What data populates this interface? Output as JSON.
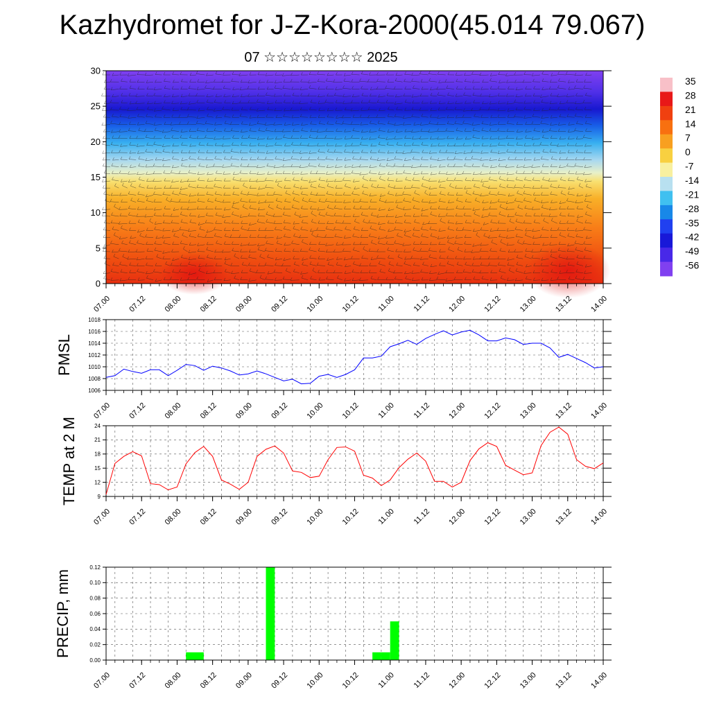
{
  "title": "Kazhydromet for J-Z-Kora-2000(45.014 79.067)",
  "subtitle": "07 ☆☆☆☆☆☆☆☆ 2025",
  "time_ticks": [
    "07.00",
    "07.12",
    "08.00",
    "08.12",
    "09.00",
    "09.12",
    "10.00",
    "10.12",
    "11.00",
    "11.12",
    "12.00",
    "12.12",
    "13.00",
    "13.12",
    "14.00"
  ],
  "colorbar": {
    "labels": [
      "35",
      "28",
      "21",
      "14",
      "7",
      "0",
      "-7",
      "-14",
      "-21",
      "-28",
      "-35",
      "-42",
      "-49",
      "-56"
    ],
    "stops": [
      "#f8c0c8",
      "#e81818",
      "#f04010",
      "#f87010",
      "#f8a020",
      "#f8d040",
      "#f8f0a0",
      "#b8e0f0",
      "#40c0f0",
      "#1888e8",
      "#2040f0",
      "#1818d8",
      "#4828e8",
      "#8040f0"
    ]
  },
  "chart_data": [
    {
      "type": "heatmap",
      "title": "",
      "xlabel": "",
      "ylabel": "",
      "ylim": [
        0,
        30
      ],
      "y_ticks": [
        "0",
        "5",
        "10",
        "15",
        "20",
        "25",
        "30"
      ],
      "x_ticks": [
        "07.00",
        "07.12",
        "08.00",
        "08.12",
        "09.00",
        "09.12",
        "10.00",
        "10.12",
        "11.00",
        "11.12",
        "12.00",
        "12.12",
        "13.00",
        "13.12",
        "14.00"
      ],
      "variable": "air temperature with wind barbs",
      "colorbar_range": [
        -56,
        35
      ]
    },
    {
      "type": "line",
      "ylabel": "PMSL",
      "ylim": [
        1006,
        1018
      ],
      "y_ticks": [
        "1006",
        "1008",
        "1010",
        "1012",
        "1014",
        "1016",
        "1018"
      ],
      "x": [
        "07.00",
        "07.03",
        "07.06",
        "07.09",
        "07.12",
        "07.15",
        "07.18",
        "07.21",
        "08.00",
        "08.03",
        "08.06",
        "08.09",
        "08.12",
        "08.15",
        "08.18",
        "08.21",
        "09.00",
        "09.03",
        "09.06",
        "09.09",
        "09.12",
        "09.15",
        "09.18",
        "09.21",
        "10.00",
        "10.03",
        "10.06",
        "10.09",
        "10.12",
        "10.15",
        "10.18",
        "10.21",
        "11.00",
        "11.03",
        "11.06",
        "11.09",
        "11.12",
        "11.15",
        "11.18",
        "11.21",
        "12.00",
        "12.03",
        "12.06",
        "12.09",
        "12.12",
        "12.15",
        "12.18",
        "12.21",
        "13.00",
        "13.03",
        "13.06",
        "13.09",
        "13.12",
        "13.15",
        "13.18",
        "13.21",
        "14.00"
      ],
      "series": [
        {
          "color": "#0000ff",
          "values": [
            1008.2,
            1008.5,
            1009.6,
            1009.2,
            1008.9,
            1009.5,
            1009.5,
            1008.5,
            1009.4,
            1010.4,
            1010.2,
            1009.4,
            1010.1,
            1009.8,
            1009.3,
            1008.6,
            1008.8,
            1009.3,
            1008.8,
            1008.2,
            1007.6,
            1007.9,
            1007.1,
            1007.2,
            1008.4,
            1008.7,
            1008.2,
            1008.7,
            1009.5,
            1011.5,
            1011.5,
            1011.8,
            1013.4,
            1013.9,
            1014.5,
            1013.8,
            1014.8,
            1015.5,
            1016.1,
            1015.4,
            1015.9,
            1016.2,
            1015.4,
            1014.4,
            1014.4,
            1014.9,
            1014.6,
            1013.8,
            1014.0,
            1014.0,
            1013.2,
            1011.6,
            1012.1,
            1011.4,
            1010.7,
            1009.8,
            1010.0
          ]
        }
      ]
    },
    {
      "type": "line",
      "ylabel": "TEMP at 2 M",
      "ylim": [
        9,
        24
      ],
      "y_ticks": [
        "9",
        "12",
        "15",
        "18",
        "21",
        "24"
      ],
      "x": [
        "07.00",
        "07.03",
        "07.06",
        "07.09",
        "07.12",
        "07.15",
        "07.18",
        "07.21",
        "08.00",
        "08.03",
        "08.06",
        "08.09",
        "08.12",
        "08.15",
        "08.18",
        "08.21",
        "09.00",
        "09.03",
        "09.06",
        "09.09",
        "09.12",
        "09.15",
        "09.18",
        "09.21",
        "10.00",
        "10.03",
        "10.06",
        "10.09",
        "10.12",
        "10.15",
        "10.18",
        "10.21",
        "11.00",
        "11.03",
        "11.06",
        "11.09",
        "11.12",
        "11.15",
        "11.18",
        "11.21",
        "12.00",
        "12.03",
        "12.06",
        "12.09",
        "12.12",
        "12.15",
        "12.18",
        "12.21",
        "13.00",
        "13.03",
        "13.06",
        "13.09",
        "13.12",
        "13.15",
        "13.18",
        "13.21",
        "14.00"
      ],
      "series": [
        {
          "color": "#ff0000",
          "values": [
            9.4,
            16.0,
            17.5,
            18.5,
            17.6,
            11.7,
            11.5,
            10.4,
            11.0,
            15.9,
            18.3,
            19.6,
            17.5,
            12.5,
            11.6,
            10.5,
            12.0,
            17.5,
            19.0,
            19.7,
            18.2,
            14.4,
            14.1,
            13.0,
            13.3,
            16.8,
            19.4,
            19.5,
            18.6,
            13.5,
            12.9,
            11.3,
            12.5,
            15.1,
            16.9,
            18.2,
            16.5,
            12.2,
            12.2,
            11.0,
            12.0,
            16.6,
            19.1,
            20.4,
            19.6,
            15.6,
            14.6,
            13.6,
            14.0,
            19.8,
            22.6,
            23.7,
            22.2,
            16.8,
            15.4,
            14.9,
            16.1
          ]
        }
      ]
    },
    {
      "type": "bar",
      "ylabel": "PRECIP, mm",
      "ylim": [
        0.0,
        0.12
      ],
      "y_ticks": [
        "0.00",
        "0.02",
        "0.04",
        "0.06",
        "0.08",
        "0.10",
        "0.12"
      ],
      "x": [
        "08.06",
        "08.09",
        "09.09",
        "10.21",
        "11.00",
        "11.03"
      ],
      "values": [
        0.01,
        0.01,
        0.12,
        0.01,
        0.01,
        0.05
      ],
      "color": "#00ff00"
    }
  ]
}
